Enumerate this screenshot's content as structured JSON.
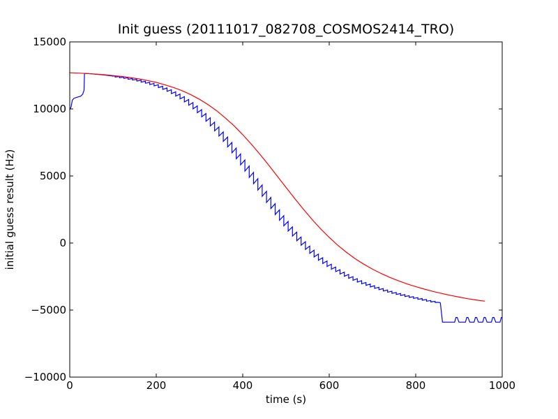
{
  "chart_data": {
    "type": "line",
    "title": "Init guess (20111017_082708_COSMOS2414_TRO)",
    "xlabel": "time (s)",
    "ylabel": "initial guess result (Hz)",
    "xlim": [
      0,
      1000
    ],
    "ylim": [
      -10000,
      15000
    ],
    "xticks": [
      0,
      200,
      400,
      600,
      800,
      1000
    ],
    "xtick_labels": [
      "0",
      "200",
      "400",
      "600",
      "800",
      "1000"
    ],
    "yticks": [
      -10000,
      -5000,
      0,
      5000,
      10000,
      15000
    ],
    "ytick_labels": [
      "−10000",
      "−5000",
      "0",
      "5000",
      "10000",
      "15000"
    ],
    "grid": false,
    "legend": null,
    "series": [
      {
        "color": "#0000ff",
        "style": "sawtooth",
        "x": [
          0,
          3,
          6,
          10,
          15,
          20,
          25,
          30,
          33,
          34,
          40,
          50,
          60,
          70,
          80,
          90,
          100,
          110,
          120,
          130,
          140,
          150,
          160,
          170,
          180,
          190,
          200,
          210,
          220,
          230,
          240,
          250,
          260,
          270,
          280,
          290,
          300,
          310,
          320,
          330,
          340,
          350,
          360,
          370,
          380,
          390,
          400,
          410,
          420,
          430,
          440,
          450,
          460,
          470,
          480,
          490,
          500,
          510,
          520,
          530,
          540,
          550,
          560,
          570,
          580,
          590,
          600,
          610,
          620,
          630,
          640,
          650,
          660,
          670,
          680,
          690,
          700,
          710,
          720,
          730,
          740,
          750,
          760,
          770,
          780,
          790,
          800,
          810,
          820,
          830,
          840,
          850,
          857
        ],
        "y": [
          9950,
          10150,
          10650,
          10800,
          10850,
          10900,
          10950,
          11100,
          11400,
          12650,
          12640,
          12620,
          12590,
          12560,
          12530,
          12490,
          12450,
          12400,
          12350,
          12300,
          12240,
          12180,
          12110,
          12030,
          11950,
          11860,
          11760,
          11640,
          11510,
          11370,
          11210,
          11030,
          10830,
          10610,
          10370,
          10110,
          9830,
          9530,
          9210,
          8870,
          8510,
          8130,
          7740,
          7330,
          6900,
          6460,
          6010,
          5550,
          5080,
          4610,
          4140,
          3670,
          3210,
          2750,
          2300,
          1870,
          1450,
          1050,
          670,
          310,
          -30,
          -350,
          -650,
          -930,
          -1190,
          -1430,
          -1660,
          -1870,
          -2060,
          -2240,
          -2410,
          -2570,
          -2720,
          -2860,
          -2990,
          -3110,
          -3230,
          -3340,
          -3440,
          -3540,
          -3630,
          -3720,
          -3800,
          -3880,
          -3960,
          -4030,
          -4100,
          -4170,
          -4240,
          -4310,
          -4370,
          -4420,
          -4450
        ]
      },
      {
        "color": "#0000ff",
        "style": "flat",
        "x": [
          857,
          862,
          890,
          893,
          896,
          900,
          915,
          918,
          921,
          925,
          935,
          938,
          941,
          945,
          955,
          958,
          961,
          965,
          975,
          978,
          981,
          985,
          995,
          998,
          1000
        ],
        "y": [
          -4450,
          -5900,
          -5900,
          -5550,
          -5550,
          -5900,
          -5900,
          -5550,
          -5550,
          -5900,
          -5900,
          -5550,
          -5550,
          -5900,
          -5900,
          -5550,
          -5550,
          -5900,
          -5900,
          -5550,
          -5550,
          -5900,
          -5900,
          -5550,
          -5550
        ]
      },
      {
        "color": "#ff0000",
        "style": "smooth",
        "x": [
          0,
          20,
          40,
          60,
          80,
          100,
          120,
          140,
          160,
          180,
          200,
          220,
          240,
          260,
          280,
          300,
          320,
          340,
          360,
          380,
          400,
          420,
          440,
          460,
          480,
          500,
          520,
          540,
          560,
          580,
          600,
          620,
          640,
          660,
          680,
          700,
          720,
          740,
          760,
          780,
          800,
          820,
          840,
          860,
          880,
          900,
          920,
          940,
          960
        ],
        "y": [
          12700,
          12670,
          12640,
          12600,
          12550,
          12490,
          12420,
          12340,
          12240,
          12120,
          11980,
          11800,
          11600,
          11360,
          11060,
          10720,
          10320,
          9860,
          9320,
          8740,
          8080,
          7370,
          6610,
          5810,
          4980,
          4150,
          3330,
          2530,
          1770,
          1060,
          420,
          -170,
          -700,
          -1170,
          -1580,
          -1950,
          -2270,
          -2560,
          -2820,
          -3050,
          -3250,
          -3440,
          -3610,
          -3760,
          -3900,
          -4030,
          -4150,
          -4250,
          -4340
        ]
      }
    ]
  }
}
